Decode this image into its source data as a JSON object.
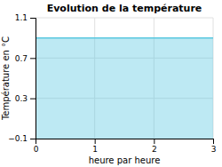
{
  "chart_data": {
    "type": "area",
    "title": "Evolution de la température",
    "x_label": "heure par heure",
    "y_label": "Température en °C",
    "x": [
      0,
      3
    ],
    "values": [
      0.9,
      0.9
    ],
    "color": "#5bc8e0",
    "xlim": [
      0,
      3
    ],
    "ylim": [
      -0.1,
      1.1
    ],
    "xticks": [
      0,
      1,
      2,
      3
    ],
    "yticks": [
      {
        "value": -0.1,
        "label": "−0.1"
      },
      0.3,
      0.7,
      1.1
    ],
    "grid": true
  }
}
